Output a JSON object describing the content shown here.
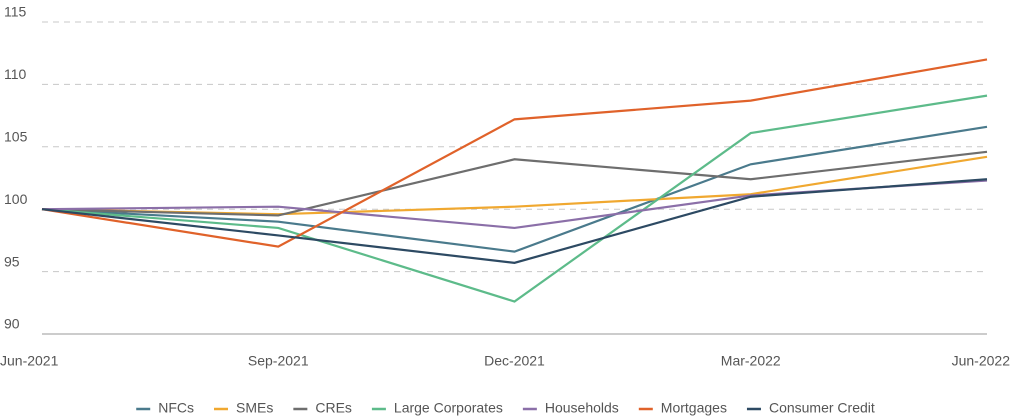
{
  "chart_data": {
    "type": "line",
    "categories": [
      "Jun-2021",
      "Sep-2021",
      "Dec-2021",
      "Mar-2022",
      "Jun-2022"
    ],
    "series": [
      {
        "name": "NFCs",
        "color": "#4a7a8c",
        "values": [
          100,
          99.0,
          96.6,
          103.6,
          106.6
        ]
      },
      {
        "name": "SMEs",
        "color": "#f0a830",
        "values": [
          100,
          99.6,
          100.2,
          101.2,
          104.2
        ]
      },
      {
        "name": "CREs",
        "color": "#6e6e6e",
        "values": [
          100,
          99.5,
          104.0,
          102.4,
          104.6
        ]
      },
      {
        "name": "Large Corporates",
        "color": "#5dbb8a",
        "values": [
          100,
          98.5,
          92.6,
          106.1,
          109.1
        ]
      },
      {
        "name": "Households",
        "color": "#8b6fa8",
        "values": [
          100,
          100.2,
          98.5,
          101.1,
          102.3
        ]
      },
      {
        "name": "Mortgages",
        "color": "#e0622a",
        "values": [
          100,
          97.0,
          107.2,
          108.7,
          112.0
        ]
      },
      {
        "name": "Consumer Credit",
        "color": "#2d4a63",
        "values": [
          100,
          97.9,
          95.7,
          101.0,
          102.4
        ]
      }
    ],
    "ylim": [
      90,
      115
    ],
    "yticks": [
      90,
      95,
      100,
      105,
      110,
      115
    ],
    "grid": true,
    "legend": "bottom"
  }
}
